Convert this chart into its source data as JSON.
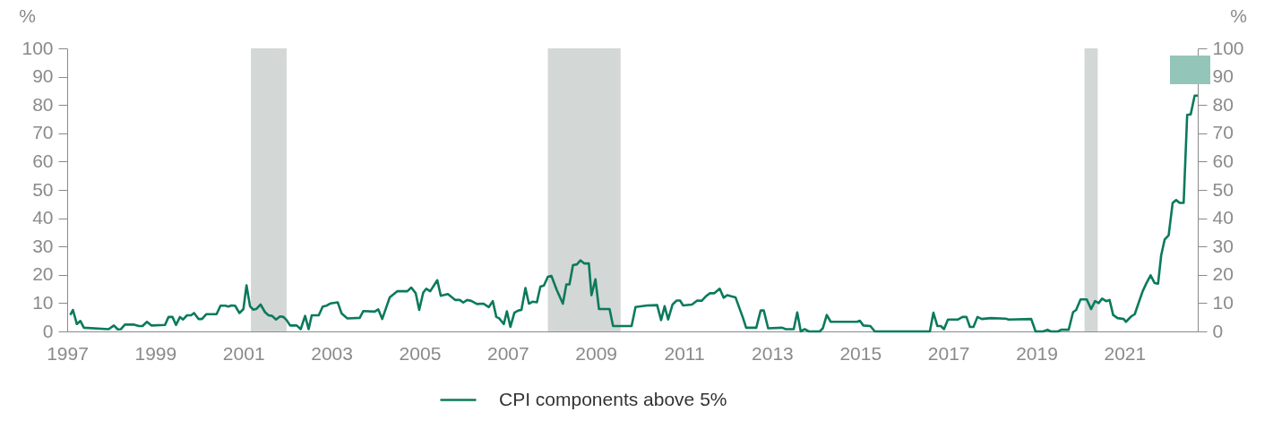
{
  "chart_data": {
    "type": "line",
    "x": [
      1997.07,
      1997.13,
      1997.22,
      1997.3,
      1997.38,
      1997.94,
      1998.06,
      1998.15,
      1998.22,
      1998.31,
      1998.52,
      1998.63,
      1998.71,
      1998.81,
      1998.91,
      1999.22,
      1999.3,
      1999.39,
      1999.47,
      1999.56,
      1999.63,
      1999.72,
      1999.81,
      1999.88,
      1999.98,
      2000.06,
      2000.16,
      2000.39,
      2000.48,
      2000.59,
      2000.66,
      2000.73,
      2000.81,
      2000.91,
      2001.0,
      2001.07,
      2001.15,
      2001.22,
      2001.3,
      2001.39,
      2001.49,
      2001.57,
      2001.65,
      2001.74,
      2001.83,
      2001.91,
      2001.98,
      2002.06,
      2002.21,
      2002.3,
      2002.4,
      2002.48,
      2002.55,
      2002.71,
      2002.8,
      2002.89,
      2002.98,
      2003.14,
      2003.23,
      2003.36,
      2003.64,
      2003.72,
      2003.98,
      2004.06,
      2004.15,
      2004.32,
      2004.49,
      2004.72,
      2004.81,
      2004.91,
      2004.99,
      2005.08,
      2005.15,
      2005.24,
      2005.4,
      2005.48,
      2005.64,
      2005.81,
      2005.91,
      2005.99,
      2006.08,
      2006.17,
      2006.3,
      2006.45,
      2006.57,
      2006.66,
      2006.74,
      2006.8,
      2006.91,
      2006.98,
      2007.06,
      2007.15,
      2007.24,
      2007.31,
      2007.4,
      2007.48,
      2007.56,
      2007.66,
      2007.74,
      2007.82,
      2007.91,
      2007.99,
      2008.11,
      2008.25,
      2008.33,
      2008.4,
      2008.48,
      2008.57,
      2008.65,
      2008.74,
      2008.84,
      2008.9,
      2008.99,
      2009.07,
      2009.31,
      2009.39,
      2009.81,
      2009.9,
      2010.17,
      2010.39,
      2010.48,
      2010.56,
      2010.64,
      2010.74,
      2010.83,
      2010.91,
      2010.98,
      2011.18,
      2011.3,
      2011.4,
      2011.51,
      2011.59,
      2011.69,
      2011.81,
      2011.9,
      2011.98,
      2012.07,
      2012.17,
      2012.34,
      2012.41,
      2012.64,
      2012.74,
      2012.81,
      2012.91,
      2013.23,
      2013.31,
      2013.49,
      2013.57,
      2013.65,
      2013.74,
      2013.83,
      2014.08,
      2014.15,
      2014.24,
      2014.33,
      2014.93,
      2014.99,
      2015.07,
      2015.23,
      2015.33,
      2016.58,
      2016.66,
      2016.75,
      2016.83,
      2016.9,
      2016.99,
      2017.22,
      2017.32,
      2017.41,
      2017.49,
      2017.57,
      2017.66,
      2017.76,
      2017.96,
      2018.3,
      2018.37,
      2018.88,
      2018.98,
      2019.15,
      2019.25,
      2019.32,
      2019.49,
      2019.56,
      2019.73,
      2019.83,
      2019.9,
      2020.0,
      2020.14,
      2020.24,
      2020.33,
      2020.41,
      2020.49,
      2020.58,
      2020.66,
      2020.74,
      2020.84,
      2020.98,
      2021.03,
      2021.15,
      2021.23,
      2021.41,
      2021.49,
      2021.59,
      2021.68,
      2021.76,
      2021.83,
      2021.91,
      2022.0,
      2022.09,
      2022.17,
      2022.25,
      2022.34,
      2022.42,
      2022.5,
      2022.59,
      2022.66
    ],
    "series": [
      {
        "name": "CPI components above 5%",
        "color": "#0b7a5c",
        "values": [
          5.8,
          7.6,
          2.6,
          3.7,
          1.3,
          0.8,
          2.1,
          0.7,
          0.8,
          2.4,
          2.4,
          1.9,
          1.9,
          3.4,
          2.1,
          2.3,
          5.1,
          5.1,
          2.3,
          5.1,
          4.2,
          5.7,
          5.7,
          6.5,
          4.4,
          4.4,
          6.1,
          6.1,
          9.1,
          9.1,
          8.8,
          9.2,
          9.1,
          6.5,
          7.9,
          16.3,
          8.9,
          7.7,
          8.0,
          9.5,
          6.8,
          5.7,
          5.5,
          4.2,
          5.3,
          5.1,
          4.0,
          2.1,
          2.1,
          0.8,
          5.5,
          0.8,
          5.7,
          5.7,
          8.8,
          9.1,
          9.9,
          10.3,
          6.3,
          4.6,
          4.8,
          7.2,
          7.0,
          7.8,
          4.4,
          12,
          14.2,
          14.2,
          15.5,
          13.5,
          7.6,
          13.7,
          15.1,
          14.2,
          18.1,
          12.6,
          13.2,
          11.1,
          11.1,
          10.2,
          11.1,
          10.8,
          9.7,
          9.8,
          8.6,
          10.7,
          5.1,
          4.7,
          2.6,
          7.1,
          1.6,
          6.6,
          7.4,
          7.6,
          15.3,
          9.8,
          10.5,
          10.3,
          15.8,
          16.2,
          19.3,
          19.6,
          14.7,
          9.8,
          16.6,
          16.6,
          23.4,
          23.7,
          25.1,
          24,
          24,
          12.8,
          18.4,
          7.9,
          7.9,
          1.9,
          1.9,
          8.6,
          9.2,
          9.3,
          4.0,
          8.9,
          4.2,
          9.5,
          10.9,
          10.9,
          9.2,
          9.5,
          10.9,
          10.8,
          12.6,
          13.5,
          13.5,
          15.1,
          11.9,
          12.8,
          12.4,
          12,
          4.7,
          1.3,
          1.3,
          7.4,
          7.4,
          1.1,
          1.3,
          0.8,
          0.8,
          6.7,
          0,
          0.8,
          0,
          0,
          1.1,
          5.8,
          3.4,
          3.4,
          3.8,
          2.1,
          1.9,
          0,
          0,
          6.6,
          1.9,
          1.9,
          0.8,
          4.2,
          4.2,
          5.1,
          5.1,
          1.6,
          1.6,
          5.1,
          4.4,
          4.7,
          4.5,
          4.2,
          4.4,
          0,
          0,
          0.6,
          0,
          0,
          0.6,
          0.6,
          6.8,
          7.6,
          11.3,
          11.3,
          7.9,
          10.7,
          10,
          11.6,
          10.7,
          11.1,
          5.8,
          4.7,
          4.4,
          3.4,
          5.3,
          6.1,
          14.2,
          16.9,
          19.8,
          17.1,
          16.9,
          26.9,
          32.5,
          34,
          45.4,
          46.4,
          45.4,
          45.4,
          76.5,
          76.7,
          83.3,
          83.3
        ]
      }
    ],
    "xlim": [
      1997,
      2022.66
    ],
    "xticks": [
      1997,
      1999,
      2001,
      2003,
      2005,
      2007,
      2009,
      2011,
      2013,
      2015,
      2017,
      2019,
      2021
    ],
    "ylim": [
      0,
      100
    ],
    "yticks": [
      0,
      10,
      20,
      30,
      40,
      50,
      60,
      70,
      80,
      90,
      100
    ],
    "y2lim": [
      0,
      100
    ],
    "y2ticks": [
      0,
      10,
      20,
      30,
      40,
      50,
      60,
      70,
      80,
      90,
      100
    ],
    "ylabel": "%",
    "y2label": "%",
    "bands": [
      {
        "axis": "x",
        "from": 2001.17,
        "to": 2001.98,
        "color": "#d3d7d5"
      },
      {
        "axis": "x",
        "from": 2007.91,
        "to": 2009.56,
        "color": "#d3d7d5"
      },
      {
        "axis": "x",
        "from": 2020.09,
        "to": 2020.39,
        "color": "#d3d7d5"
      }
    ],
    "grid": false,
    "legend": "bottom",
    "line_style": "solid",
    "marker": "none"
  }
}
